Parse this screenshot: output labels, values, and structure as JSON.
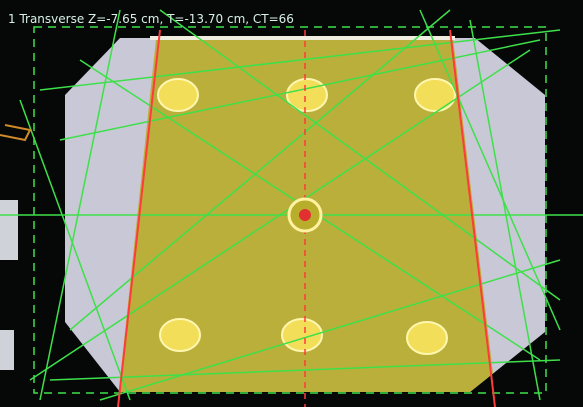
{
  "viewport": {
    "label": "1 Transverse Z=-7.65 cm, T=-13.70 cm, CT=66"
  }
}
